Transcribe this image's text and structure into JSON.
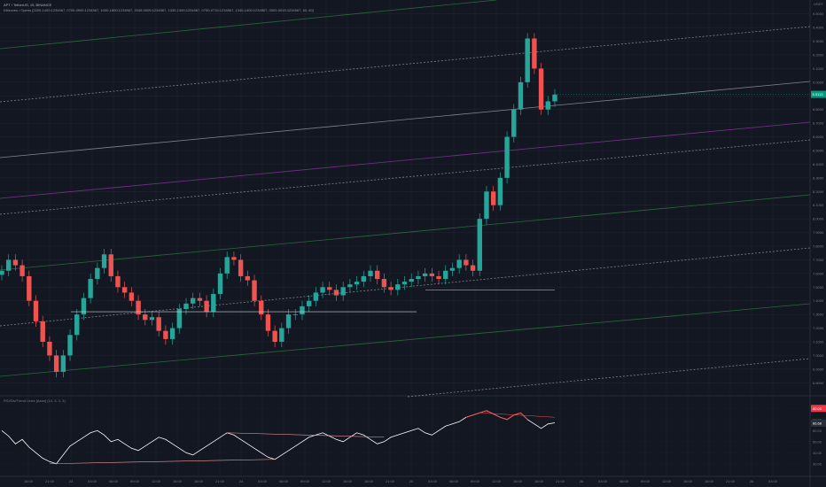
{
  "header": {
    "title": "APT / TetherUS, 15, BINANCE",
    "indicator": "Killzones / Opens [2200-1400:1234567, 0700-0900:1234567, 1000-1800:1234567, 2045-0005:1234567, 1330-1345:1234567, 0700-0715:1234567, 1345-1400:1234567, 0000-0015:1234567, 60, 60]",
    "currency": "USDT"
  },
  "colors": {
    "background": "#131722",
    "up": "#26a69a",
    "down": "#ef5350",
    "grid": "#1e222d",
    "channel_green": "#2f7d43",
    "channel_white": "#9aa0ab",
    "channel_purple": "#8e3aa3",
    "rsi_line": "#ffffff",
    "rsi_hot": "#ef5350",
    "price_badge": "#089981",
    "rsi_badge": "#f23645"
  },
  "chart_data": [
    {
      "type": "candlestick",
      "symbol": "APT/USDT",
      "interval": "15",
      "y_ticks": [
        "9.5000",
        "9.4000",
        "9.3000",
        "9.2000",
        "9.1000",
        "9.0000",
        "8.9000",
        "8.8000",
        "8.7000",
        "8.6000",
        "8.5000",
        "8.4000",
        "8.3000",
        "8.2000",
        "8.1000",
        "8.0000",
        "7.9000",
        "7.8000",
        "7.7000",
        "7.6000",
        "7.5000",
        "7.4000",
        "7.3000",
        "7.2000",
        "7.1000",
        "7.0000",
        "6.9000",
        "6.8000"
      ],
      "ylim": [
        6.75,
        9.55
      ],
      "last_price": "8.9113",
      "x_ticks": [
        "18:00",
        "21:00",
        "23",
        "03:00",
        "06:00",
        "09:00",
        "12:00",
        "15:00",
        "18:00",
        "21:00",
        "24",
        "03:00",
        "06:00",
        "09:00",
        "12:00",
        "15:00",
        "18:00",
        "21:00",
        "25",
        "03:00",
        "06:00",
        "09:00",
        "12:00",
        "15:00",
        "18:00",
        "21:00",
        "26",
        "03:00",
        "06:00",
        "09:00",
        "12:00",
        "15:00",
        "18:00",
        "21:00",
        "26",
        "03:00"
      ],
      "close_series": [
        7.62,
        7.7,
        7.66,
        7.58,
        7.4,
        7.25,
        7.1,
        7.0,
        6.88,
        7.0,
        7.15,
        7.3,
        7.42,
        7.56,
        7.64,
        7.74,
        7.58,
        7.5,
        7.46,
        7.4,
        7.3,
        7.26,
        7.28,
        7.18,
        7.12,
        7.2,
        7.34,
        7.38,
        7.42,
        7.4,
        7.32,
        7.45,
        7.6,
        7.72,
        7.7,
        7.58,
        7.55,
        7.4,
        7.3,
        7.18,
        7.1,
        7.2,
        7.3,
        7.3,
        7.36,
        7.4,
        7.46,
        7.5,
        7.48,
        7.44,
        7.5,
        7.52,
        7.54,
        7.58,
        7.62,
        7.56,
        7.5,
        7.48,
        7.52,
        7.54,
        7.56,
        7.58,
        7.6,
        7.58,
        7.56,
        7.62,
        7.64,
        7.7,
        7.66,
        7.62,
        8.0,
        8.2,
        8.1,
        8.3,
        8.6,
        8.8,
        9.0,
        9.32,
        9.1,
        8.8,
        8.86,
        8.91
      ]
    },
    {
      "type": "line",
      "title": "RSI/Div/Trend Lines [Azan] (14, 3, 3, 3)",
      "y_ticks": [
        "80.00",
        "70.00",
        "60.00",
        "50.00",
        "40.00",
        "30.00"
      ],
      "ylim": [
        25,
        85
      ],
      "last_value": "66.68",
      "upper_badge": "80.00",
      "series": [
        {
          "values": [
            60,
            55,
            48,
            52,
            45,
            40,
            35,
            32,
            30,
            38,
            46,
            50,
            54,
            58,
            60,
            56,
            50,
            52,
            48,
            44,
            42,
            46,
            50,
            54,
            52,
            48,
            44,
            40,
            38,
            42,
            46,
            50,
            54,
            58,
            56,
            52,
            48,
            44,
            40,
            36,
            34,
            38,
            42,
            46,
            50,
            54,
            56,
            58,
            55,
            52,
            50,
            54,
            58,
            56,
            52,
            48,
            50,
            54,
            56,
            58,
            60,
            62,
            58,
            56,
            60,
            64,
            66,
            68,
            72,
            74,
            76,
            78,
            75,
            72,
            70,
            74,
            76,
            70,
            66,
            62,
            66,
            67
          ]
        }
      ]
    }
  ]
}
